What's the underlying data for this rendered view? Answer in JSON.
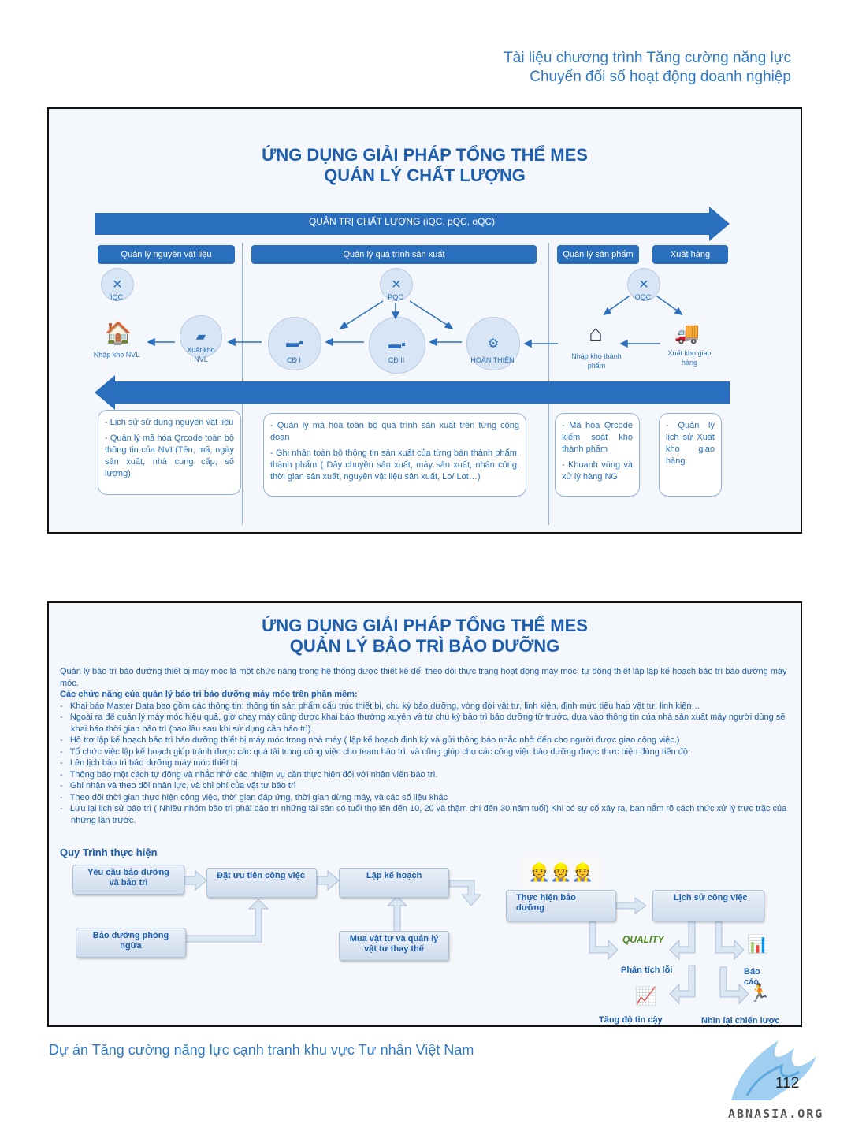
{
  "header": {
    "line1": "Tài liệu chương trình Tăng cường năng lực",
    "line2": "Chuyển đổi số hoạt động doanh nghiệp"
  },
  "slide1": {
    "title1": "ỨNG DỤNG GIẢI PHÁP TỔNG THỂ MES",
    "title2": "QUẢN LÝ CHẤT LƯỢNG",
    "top_arrow": "QUẢN TRỊ CHẤT LƯỢNG (iQC, pQC, oQC)",
    "pills": [
      "Quản lý nguyên vật liệu",
      "Quản lý quá trình sản xuất",
      "Quản lý sản phẩm",
      "Xuất hàng"
    ],
    "icons": {
      "iqc": "IQC",
      "pqc": "PQC",
      "oqc": "OQC",
      "nhap_kho_nvl": "Nhập kho NVL",
      "xuat_kho_nvl": "Xuất kho NVL",
      "cd1": "CĐ I",
      "cd2": "CĐ II",
      "hoan_thien": "HOÀN THIỆN",
      "nhap_kho_tp": "Nhập kho thành phẩm",
      "xuat_kho_giao": "Xuất kho giao hàng"
    },
    "box1": [
      "Lịch sử sử dụng nguyên vật liệu",
      "Quản lý mã hóa Qrcode toàn bộ thông tin của NVL(Tên, mã, ngày sản xuất, nhà cung cấp, số lượng)"
    ],
    "box2": [
      "Quản lý mã hóa toàn bộ quá trình sản xuất trên từng công đoạn",
      "Ghi nhận toàn bộ thông tin sản xuất của từng bán thành phẩm, thành phẩm ( Dây chuyền sản xuất, máy sản xuất, nhân công, thời gian sản xuất, nguyên vật liệu sản xuất, Lo/ Lot…)"
    ],
    "box3": [
      "Mã hóa Qrcode kiểm soát kho thành phẩm",
      "Khoanh vùng và xử lý hàng NG"
    ],
    "box4": [
      "Quản lý lịch sử Xuất kho giao hàng"
    ]
  },
  "slide2": {
    "title1": "ỨNG DỤNG GIẢI PHÁP TỔNG THỂ MES",
    "title2": "QUẢN LÝ BẢO TRÌ BẢO DƯỠNG",
    "intro": "Quản lý bảo trì bảo dưỡng thiết bị máy móc là một chức năng trong hệ thống  được thiết kế để: theo dõi thực trạng hoạt động máy móc, tự động thiết lập lập kế hoạch bảo trì bảo dưỡng máy móc.",
    "features_title": "Các chức năng của quản lý bảo trì bảo dưỡng máy móc trên phần mềm:",
    "features": [
      "Khai báo Master Data bao gồm các thông tin: thông tin sản phẩm cấu trúc thiết bị, chu kỳ bảo dưỡng, vòng đời vật tư, linh kiện, định mức tiêu hao vật tư, linh kiện…",
      "Ngoài ra để quản lý máy móc hiệu quả, giờ chạy máy cũng được khai báo thường xuyên và từ chu kỳ bảo trì bảo dưỡng từ trước, dựa vào thông tin của nhà sản xuất máy người dùng sẽ khai báo thời gian bảo trì (bao lâu sau khi sử dụng cần bảo trì).",
      "Hỗ trợ lập kế hoạch bảo trì bảo dưỡng thiết bị máy móc trong nhà máy ( lập kế hoạch định kỳ và gửi thông báo nhắc nhở đến cho người được giao công việc.)",
      "Tổ chức việc lập kế hoạch giúp tránh được các quá tải trong công việc cho team bảo trì, và cũng giúp cho các công việc bảo dưỡng được thực hiện đúng tiến độ.",
      "Lên lịch bảo trì bảo dưỡng máy móc thiết bị",
      "Thông báo một cách tự động và nhắc nhở các nhiệm vụ cần thực hiện đối với nhân viên bảo trì.",
      "Ghi nhận và theo dõi nhân lực, và chi phí của vật tư bảo trì",
      "Theo dõi thời gian thực hiện công việc, thời gian đáp ứng, thời gian dừng máy, và các số liệu khác",
      "Lưu lại lịch sử bảo trì ( Nhiều nhóm bảo trì phải bảo trì những tài sản có tuổi thọ lên đến 10, 20 và thậm chí đến 30 năm tuổi) Khi có sự cố xảy ra, bạn nắm rõ cách thức xử lý trực trặc của những lần trước."
    ],
    "process_title": "Quy Trình thực hiện",
    "flow": {
      "yeu_cau": "Yêu cầu bảo dưỡng và bảo trì",
      "dat_uu_tien": "Đặt ưu tiên công việc",
      "lap_ke_hoach": "Lập kế hoạch",
      "bao_duong": "Bảo dưỡng phòng ngừa",
      "mua_vat_tu": "Mua vật tư và quản lý vật tư thay thế",
      "thuc_hien": "Thực hiện bảo dưỡng",
      "lich_su": "Lịch sử công việc",
      "phan_tich": "Phân tích lỗi",
      "bao_cao": "Báo cáo",
      "tang_do": "Tăng độ tin cậy",
      "nhin_lai": "Nhìn lại chiến lược",
      "quality_logo": "QUALITY"
    }
  },
  "footer": "Dự án Tăng cường năng lực cạnh tranh khu vực Tư nhân Việt Nam",
  "page_number": "112",
  "watermark": "ABNASIA.ORG",
  "colors": {
    "accent": "#1e5eae",
    "arrow": "#2a6fbd",
    "text_light": "#2e78c6"
  }
}
